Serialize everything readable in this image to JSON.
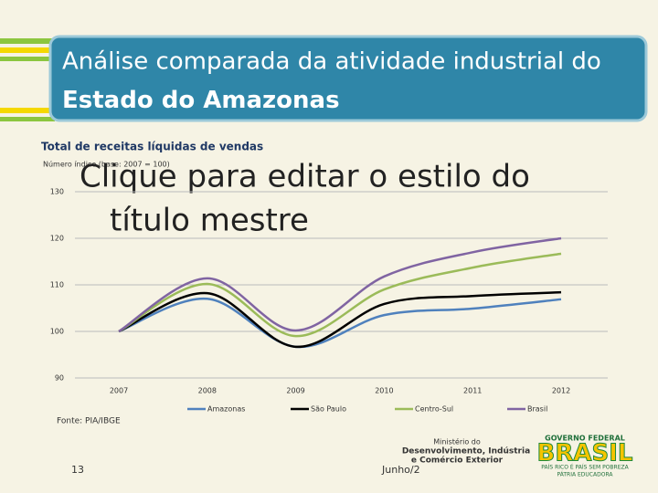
{
  "slide": {
    "title_regular": "Análise comparada da atividade industrial do",
    "title_bold": "Estado do Amazonas",
    "placeholder_title": [
      "Clique para editar o estilo do",
      "título mestre"
    ],
    "source": "Fonte: PIA/IBGE",
    "page_number": "13",
    "date": "Junho/2",
    "ministry": [
      "Ministério do",
      "Desenvolvimento, Indústria",
      "e Comércio Exterior"
    ],
    "gov_top": "GOVERNO FEDERAL",
    "gov_brand": "BRASIL",
    "gov_motto": "PAÍS RICO É PAÍS SEM POBREZA",
    "gov_bottom": "PÁTRIA EDUCADORA"
  },
  "chart_data": {
    "type": "line",
    "title": "Total de receitas líquidas de vendas",
    "subtitle": "Número índice (base: 2007 = 100)",
    "categories": [
      "2007",
      "2008",
      "2009",
      "2010",
      "2011",
      "2012"
    ],
    "series": [
      {
        "name": "Amazonas",
        "color": "#4f81bd",
        "values": [
          100,
          107,
          96.7,
          103.5,
          104.9,
          106.9
        ]
      },
      {
        "name": "São Paulo",
        "color": "#000000",
        "values": [
          100,
          108.2,
          96.7,
          105.9,
          107.6,
          108.4
        ]
      },
      {
        "name": "Centro-Sul",
        "color": "#9bbb59",
        "values": [
          100,
          110.2,
          99,
          109,
          113.7,
          116.7
        ]
      },
      {
        "name": "Brasil",
        "color": "#8064a2",
        "values": [
          100,
          111.4,
          100.2,
          111.8,
          117,
          120
        ]
      }
    ],
    "ylim": [
      90,
      130
    ],
    "yticks": [
      90,
      100,
      110,
      120,
      130
    ],
    "grid": true,
    "legend": "bottom"
  }
}
